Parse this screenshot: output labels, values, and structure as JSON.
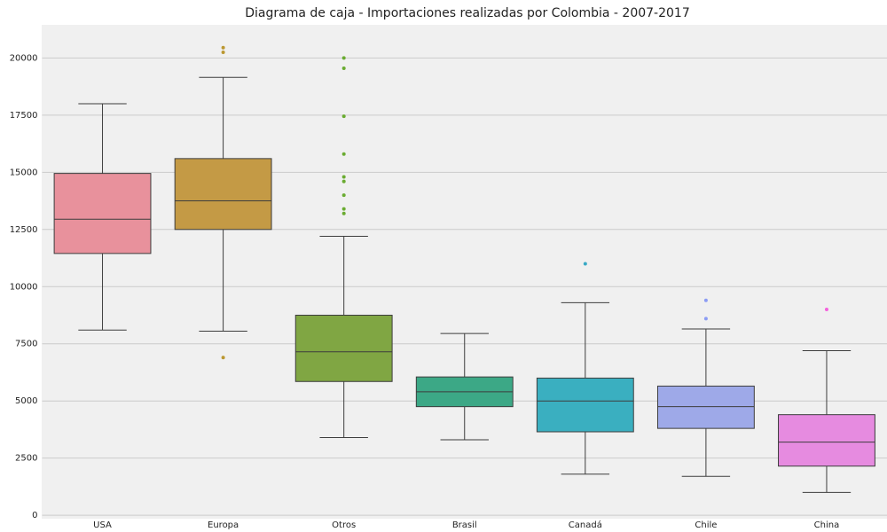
{
  "chart_data": {
    "type": "box",
    "title": "Diagrama de caja - Importaciones realizadas por Colombia - 2007-2017",
    "categories": [
      "USA",
      "Europa",
      "Otros",
      "Brasil",
      "Canadá",
      "Chile",
      "China"
    ],
    "boxes": [
      {
        "low": 8100,
        "q1": 11450,
        "median": 12950,
        "q3": 14950,
        "high": 18000,
        "outliers": [],
        "color": "#e8919c",
        "point_color": "#f77189"
      },
      {
        "low": 8050,
        "q1": 12500,
        "median": 13750,
        "q3": 15600,
        "high": 19150,
        "outliers": [
          6900,
          20250,
          20450
        ],
        "color": "#c49a45",
        "point_color": "#bb9832"
      },
      {
        "low": 3400,
        "q1": 5850,
        "median": 7150,
        "q3": 8750,
        "high": 12200,
        "outliers": [
          13200,
          13400,
          14000,
          14600,
          14800,
          15800,
          17450,
          19550,
          20000
        ],
        "color": "#80a643",
        "point_color": "#6aab31"
      },
      {
        "low": 3300,
        "q1": 4750,
        "median": 5400,
        "q3": 6050,
        "high": 7950,
        "outliers": [],
        "color": "#3ca886",
        "point_color": "#36ada4"
      },
      {
        "low": 1800,
        "q1": 3650,
        "median": 5000,
        "q3": 6000,
        "high": 9300,
        "outliers": [
          11000
        ],
        "color": "#3aafc0",
        "point_color": "#38a9c5"
      },
      {
        "low": 1700,
        "q1": 3800,
        "median": 4750,
        "q3": 5650,
        "high": 8150,
        "outliers": [
          8600,
          9400
        ],
        "color": "#9ea9e8",
        "point_color": "#8c9cf4"
      },
      {
        "low": 1000,
        "q1": 2150,
        "median": 3200,
        "q3": 4400,
        "high": 7200,
        "outliers": [
          9000
        ],
        "color": "#e68be0",
        "point_color": "#f561dd"
      }
    ],
    "ylim": [
      -150,
      21450
    ],
    "yticks": [
      0,
      2500,
      5000,
      7500,
      10000,
      12500,
      15000,
      17500,
      20000
    ],
    "grid": true
  }
}
